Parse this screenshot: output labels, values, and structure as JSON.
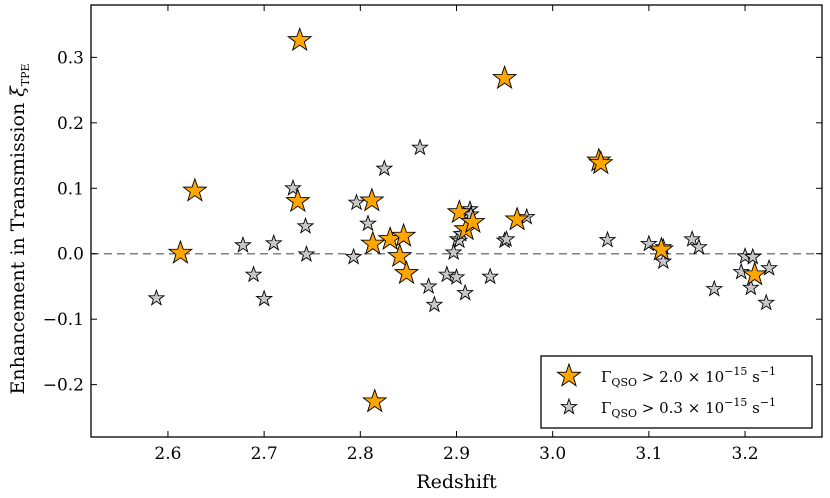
{
  "chart_data": {
    "type": "scatter",
    "xlabel": "Redshift",
    "ylabel_main": "Enhancement in Transmission ",
    "ylabel_symbol": "ξ",
    "ylabel_subscript": "TPE",
    "xlim": [
      2.52,
      3.28
    ],
    "ylim": [
      -0.28,
      0.38
    ],
    "xticks": [
      2.6,
      2.7,
      2.8,
      2.9,
      3.0,
      3.1,
      3.2
    ],
    "xtick_labels": [
      "2.6",
      "2.7",
      "2.8",
      "2.9",
      "3.0",
      "3.1",
      "3.2"
    ],
    "yticks": [
      -0.2,
      -0.1,
      0.0,
      0.1,
      0.2,
      0.3
    ],
    "ytick_labels": [
      "−0.2",
      "−0.1",
      "0.0",
      "0.1",
      "0.2",
      "0.3"
    ],
    "reference_line_y": 0.0,
    "legend_position": "lower-right",
    "series": [
      {
        "name": "bright",
        "label_symbol": "Γ",
        "label_sub": "QSO",
        "label_rest": " > 2.0 × 10",
        "label_exp": "−15",
        "label_unit": " s",
        "label_unit_exp": "−1",
        "color": "#ffa500",
        "marker_size": 12,
        "x": [
          2.613,
          2.628,
          2.735,
          2.737,
          2.812,
          2.813,
          2.815,
          2.831,
          2.841,
          2.845,
          2.848,
          2.903,
          2.91,
          2.917,
          2.95,
          2.963,
          3.048,
          3.05,
          3.113,
          3.21
        ],
        "y": [
          0.001,
          0.096,
          0.08,
          0.326,
          0.081,
          0.015,
          -0.226,
          0.022,
          -0.004,
          0.027,
          -0.03,
          0.063,
          0.037,
          0.048,
          0.268,
          0.052,
          0.142,
          0.138,
          0.006,
          -0.032
        ]
      },
      {
        "name": "faint",
        "label_symbol": "Γ",
        "label_sub": "QSO",
        "label_rest": " > 0.3 × 10",
        "label_exp": "−15",
        "label_unit": " s",
        "label_unit_exp": "−1",
        "color": "#c8c8c8",
        "marker_size": 8,
        "x": [
          2.588,
          2.678,
          2.689,
          2.7,
          2.71,
          2.73,
          2.743,
          2.744,
          2.793,
          2.796,
          2.808,
          2.825,
          2.862,
          2.871,
          2.877,
          2.89,
          2.897,
          2.9,
          2.901,
          2.903,
          2.905,
          2.909,
          2.914,
          2.915,
          2.935,
          2.95,
          2.952,
          2.973,
          3.057,
          3.1,
          3.115,
          3.115,
          3.145,
          3.152,
          3.168,
          3.196,
          3.2,
          3.206,
          3.208,
          3.222,
          3.225
        ],
        "y": [
          -0.068,
          0.013,
          -0.032,
          -0.069,
          0.016,
          0.1,
          0.042,
          -0.001,
          -0.005,
          0.078,
          0.046,
          0.13,
          0.162,
          -0.05,
          -0.078,
          -0.032,
          0.002,
          -0.036,
          0.022,
          0.02,
          0.03,
          -0.06,
          0.068,
          0.06,
          -0.035,
          0.02,
          0.022,
          0.056,
          0.021,
          0.015,
          0.01,
          -0.012,
          0.022,
          0.01,
          -0.054,
          -0.028,
          -0.004,
          -0.052,
          -0.005,
          -0.075,
          -0.022
        ]
      }
    ]
  }
}
